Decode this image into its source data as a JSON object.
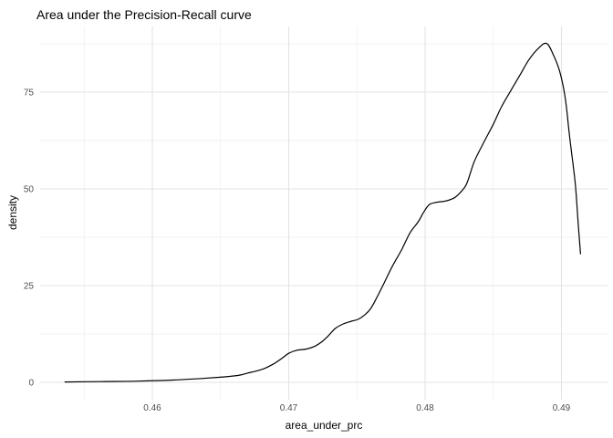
{
  "colors": {
    "background": "#ffffff",
    "grid_major": "#e3e3e3",
    "grid_minor": "#ededed",
    "curve": "#000000",
    "tick_label": "#4d4d4d",
    "title_text": "#000000"
  },
  "x_axis": {
    "ticks": [
      0.46,
      0.47,
      0.48,
      0.49
    ],
    "tick_labels": [
      "0.46",
      "0.47",
      "0.48",
      "0.49"
    ],
    "minor_ticks": [
      0.455,
      0.465,
      0.475,
      0.485
    ]
  },
  "y_axis": {
    "ticks": [
      0,
      25,
      50,
      75
    ],
    "tick_labels": [
      "0",
      "25",
      "50",
      "75"
    ],
    "minor_ticks": [
      12.5,
      37.5,
      62.5,
      87.5
    ]
  },
  "chart_data": {
    "type": "line",
    "subtype": "density",
    "title": "Area under the Precision-Recall curve",
    "xlabel": "area_under_prc",
    "ylabel": "density",
    "xlim": [
      0.451773,
      0.493377
    ],
    "ylim": [
      -4.48,
      91.98
    ],
    "grid": "major+minor",
    "legend": "none",
    "series": [
      {
        "name": "density",
        "points": [
          [
            0.4536,
            0.1
          ],
          [
            0.4562,
            0.2
          ],
          [
            0.4589,
            0.3
          ],
          [
            0.4615,
            0.6
          ],
          [
            0.4636,
            1.0
          ],
          [
            0.4652,
            1.4
          ],
          [
            0.4663,
            1.8
          ],
          [
            0.467,
            2.4
          ],
          [
            0.4677,
            3.0
          ],
          [
            0.4683,
            3.7
          ],
          [
            0.4689,
            4.8
          ],
          [
            0.4695,
            6.2
          ],
          [
            0.47,
            7.5
          ],
          [
            0.4706,
            8.3
          ],
          [
            0.4713,
            8.6
          ],
          [
            0.4719,
            9.3
          ],
          [
            0.4724,
            10.4
          ],
          [
            0.4729,
            12.0
          ],
          [
            0.4734,
            13.9
          ],
          [
            0.474,
            15.1
          ],
          [
            0.4746,
            15.8
          ],
          [
            0.4751,
            16.3
          ],
          [
            0.4756,
            17.5
          ],
          [
            0.476,
            19.0
          ],
          [
            0.4764,
            21.5
          ],
          [
            0.4769,
            25.0
          ],
          [
            0.4776,
            30.0
          ],
          [
            0.4783,
            34.4
          ],
          [
            0.4789,
            38.7
          ],
          [
            0.4795,
            41.5
          ],
          [
            0.4799,
            44.0
          ],
          [
            0.4803,
            45.9
          ],
          [
            0.4808,
            46.5
          ],
          [
            0.4814,
            46.8
          ],
          [
            0.4819,
            47.3
          ],
          [
            0.4823,
            48.1
          ],
          [
            0.483,
            51.0
          ],
          [
            0.4836,
            57.0
          ],
          [
            0.4843,
            62.0
          ],
          [
            0.485,
            66.7
          ],
          [
            0.4856,
            71.2
          ],
          [
            0.4863,
            75.5
          ],
          [
            0.487,
            79.7
          ],
          [
            0.4876,
            83.3
          ],
          [
            0.4883,
            86.3
          ],
          [
            0.4889,
            87.6
          ],
          [
            0.4894,
            84.7
          ],
          [
            0.4899,
            80.0
          ],
          [
            0.4903,
            72.9
          ],
          [
            0.4906,
            63.4
          ],
          [
            0.491,
            51.7
          ],
          [
            0.4912,
            42.2
          ],
          [
            0.4914,
            33.2
          ]
        ]
      }
    ]
  }
}
